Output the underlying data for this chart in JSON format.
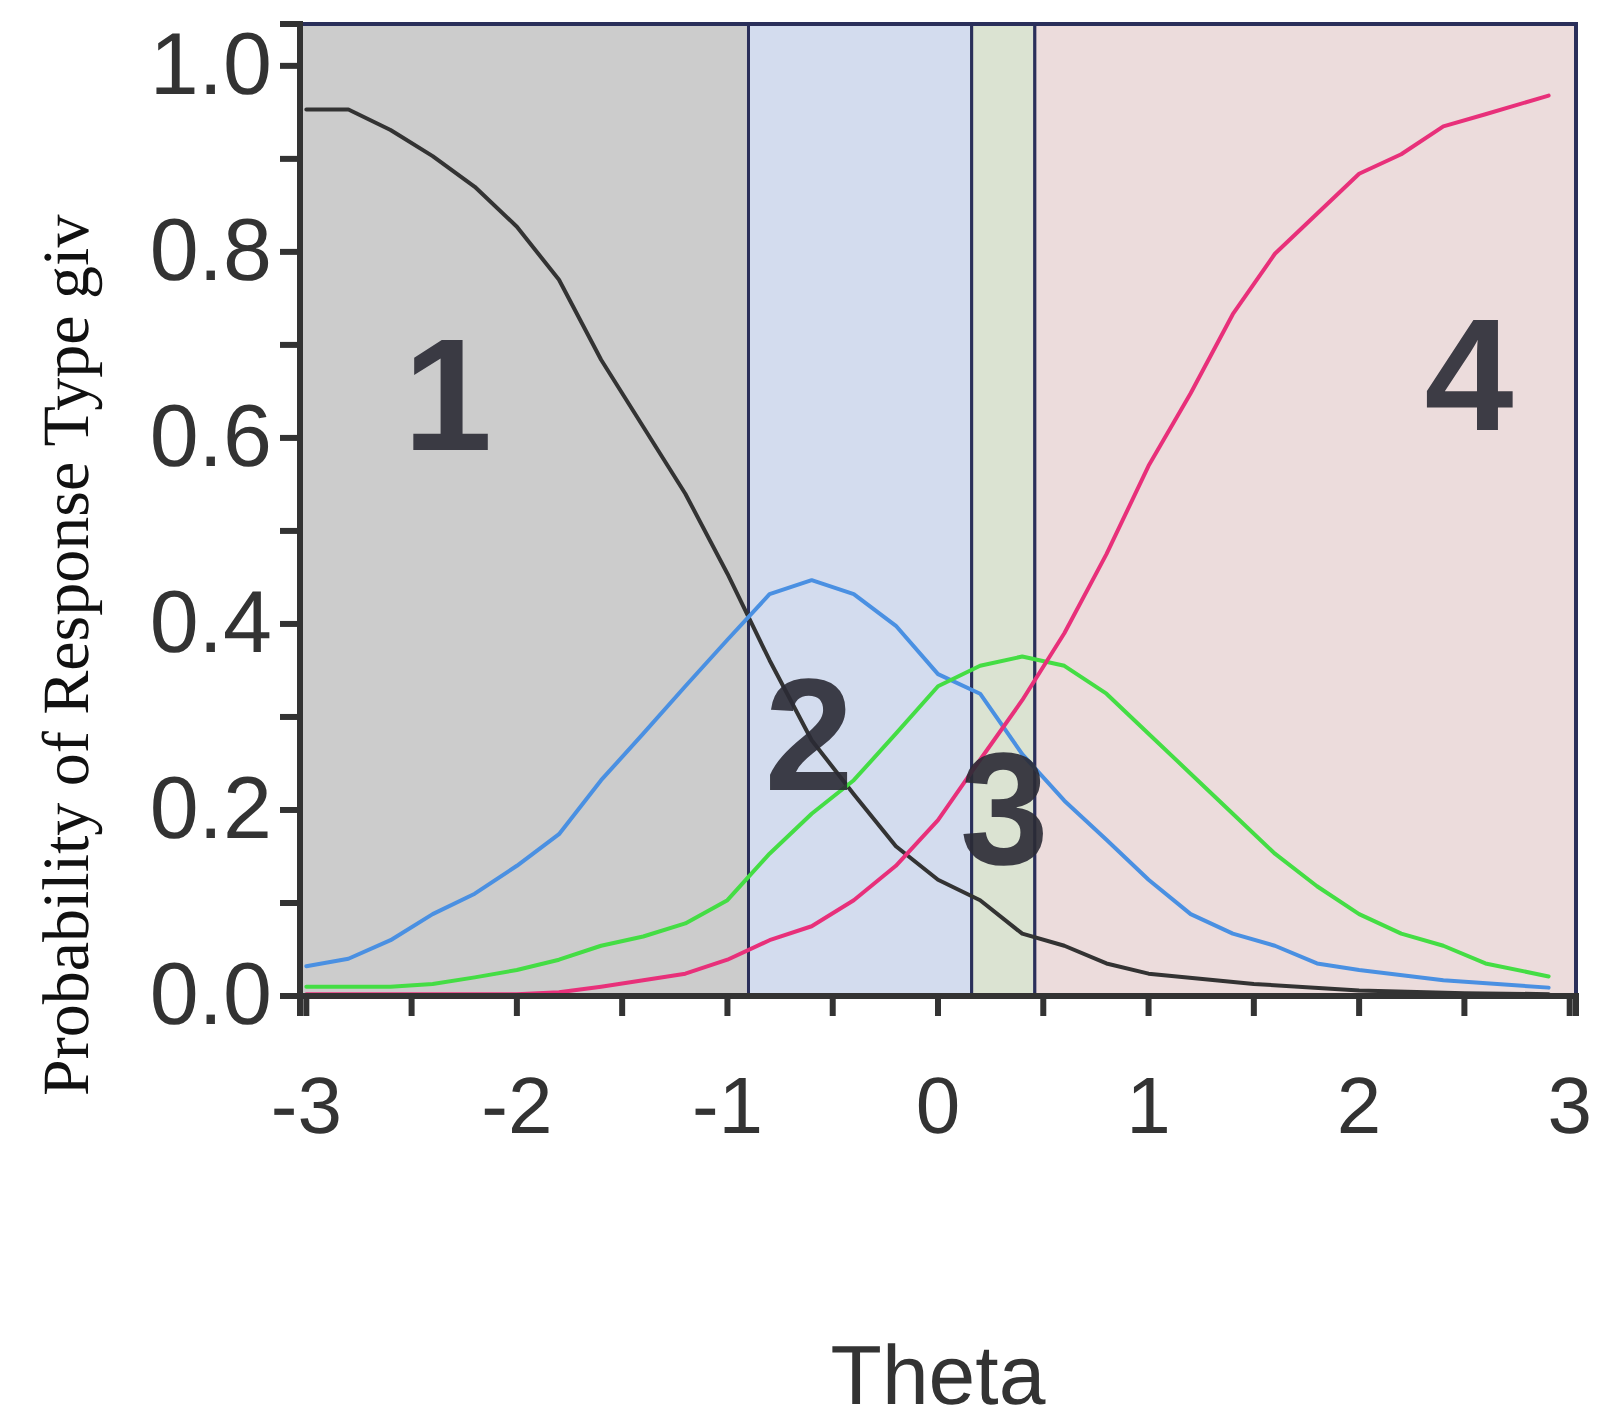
{
  "chart_data": {
    "type": "line",
    "xlabel": "Theta",
    "ylabel": "Probability of Response Type giv",
    "xlim": [
      -3.03,
      3.03
    ],
    "ylim": [
      0,
      1.045
    ],
    "xticks": [
      {
        "value": -3,
        "label": "-3"
      },
      {
        "value": -2.5,
        "label": null
      },
      {
        "value": -2,
        "label": "-2"
      },
      {
        "value": -1.5,
        "label": null
      },
      {
        "value": -1,
        "label": "-1"
      },
      {
        "value": -0.5,
        "label": null
      },
      0,
      {
        "value": 0.5,
        "label": null
      },
      1,
      {
        "value": 1.5,
        "label": null
      },
      2,
      {
        "value": 2.5,
        "label": null
      },
      3
    ],
    "yticks": [
      {
        "value": 0,
        "label": "0.0"
      },
      {
        "value": 0.1,
        "label": null
      },
      0.2,
      {
        "value": 0.3,
        "label": null
      },
      0.4,
      {
        "value": 0.5,
        "label": null
      },
      0.6,
      {
        "value": 0.7,
        "label": null
      },
      0.8,
      {
        "value": 0.9,
        "label": null
      },
      {
        "value": 1,
        "label": "1.0"
      }
    ],
    "grid": false,
    "marker": "none",
    "line_style": "solid",
    "bands": [
      {
        "axis": "x",
        "from": -3.03,
        "to": -0.9,
        "label": "1",
        "color": "#cccccc"
      },
      {
        "axis": "x",
        "from": -0.9,
        "to": 0.16,
        "label": "2",
        "color": "#d3dcee"
      },
      {
        "axis": "x",
        "from": 0.16,
        "to": 0.46,
        "label": "3",
        "color": "#dbe3d2"
      },
      {
        "axis": "x",
        "from": 0.46,
        "to": 3.03,
        "label": "4",
        "color": "#ecdcdc"
      }
    ],
    "series": [
      {
        "color": "#333333",
        "x": [
          -3,
          -2.8,
          -2.6,
          -2.4,
          -2.2,
          -2.0,
          -1.8,
          -1.6,
          -1.4,
          -1.2,
          -1.0,
          -0.8,
          -0.6,
          -0.4,
          -0.2,
          0,
          0.2,
          0.4,
          0.6,
          0.8,
          1.0,
          1.5,
          2.0,
          2.5,
          2.9
        ],
        "values": [
          0.953,
          0.953,
          0.931,
          0.903,
          0.87,
          0.827,
          0.77,
          0.684,
          0.612,
          0.54,
          0.454,
          0.361,
          0.275,
          0.217,
          0.161,
          0.125,
          0.103,
          0.067,
          0.054,
          0.035,
          0.024,
          0.013,
          0.006,
          0.003,
          0.002
        ]
      },
      {
        "color": "#4a90e2",
        "x": [
          -3,
          -2.8,
          -2.6,
          -2.4,
          -2.2,
          -2.0,
          -1.8,
          -1.6,
          -1.4,
          -1.2,
          -1.0,
          -0.8,
          -0.6,
          -0.4,
          -0.2,
          0,
          0.2,
          0.4,
          0.6,
          0.8,
          1.0,
          1.2,
          1.4,
          1.6,
          1.8,
          2.0,
          2.4,
          2.9
        ],
        "values": [
          0.032,
          0.04,
          0.06,
          0.088,
          0.11,
          0.14,
          0.174,
          0.232,
          0.282,
          0.333,
          0.383,
          0.432,
          0.447,
          0.432,
          0.398,
          0.346,
          0.325,
          0.26,
          0.21,
          0.168,
          0.125,
          0.088,
          0.067,
          0.054,
          0.035,
          0.028,
          0.017,
          0.009
        ]
      },
      {
        "color": "#44dd44",
        "x": [
          -3,
          -2.6,
          -2.4,
          -2.2,
          -2.0,
          -1.8,
          -1.6,
          -1.4,
          -1.2,
          -1.0,
          -0.8,
          -0.6,
          -0.4,
          -0.2,
          0,
          0.2,
          0.4,
          0.6,
          0.8,
          1.0,
          1.2,
          1.4,
          1.6,
          1.8,
          2.0,
          2.2,
          2.4,
          2.6,
          2.9
        ],
        "values": [
          0.01,
          0.01,
          0.013,
          0.02,
          0.028,
          0.039,
          0.054,
          0.064,
          0.078,
          0.103,
          0.153,
          0.196,
          0.232,
          0.282,
          0.333,
          0.355,
          0.365,
          0.355,
          0.325,
          0.282,
          0.239,
          0.196,
          0.153,
          0.118,
          0.088,
          0.067,
          0.054,
          0.035,
          0.021
        ]
      },
      {
        "color": "#e8307a",
        "x": [
          -3,
          -2.5,
          -2.0,
          -1.8,
          -1.6,
          -1.4,
          -1.2,
          -1.0,
          -0.8,
          -0.6,
          -0.4,
          -0.2,
          0,
          0.2,
          0.4,
          0.6,
          0.8,
          1.0,
          1.2,
          1.4,
          1.6,
          1.8,
          2.0,
          2.2,
          2.4,
          2.6,
          2.9
        ],
        "values": [
          0.002,
          0.002,
          0.002,
          0.004,
          0.01,
          0.017,
          0.024,
          0.039,
          0.06,
          0.075,
          0.103,
          0.14,
          0.189,
          0.254,
          0.318,
          0.39,
          0.475,
          0.57,
          0.648,
          0.733,
          0.798,
          0.841,
          0.884,
          0.905,
          0.935,
          0.948,
          0.968
        ]
      }
    ]
  }
}
